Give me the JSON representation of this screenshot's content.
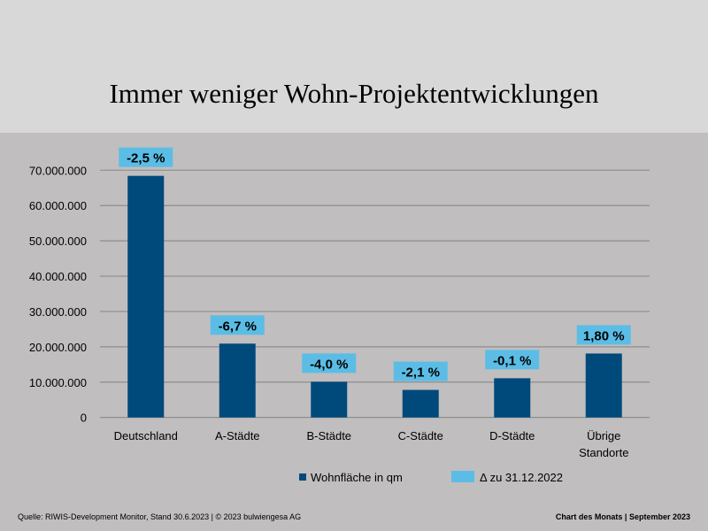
{
  "chart_data": {
    "type": "bar",
    "title": "Immer weniger Wohn-Projektentwicklungen",
    "categories": [
      "Deutschland",
      "A-Städte",
      "B-Städte",
      "C-Städte",
      "D-Städte",
      "Übrige Standorte"
    ],
    "series": [
      {
        "name": "Wohnfläche in qm",
        "color": "#00497b",
        "values": [
          68400000,
          20900000,
          10100000,
          7800000,
          11100000,
          18100000
        ]
      },
      {
        "name": "Δ zu 31.12.2022",
        "color": "#5bbde6",
        "labels": [
          "-2,5 %",
          "-6,7 %",
          "-4,0 %",
          "-2,1 %",
          "-0,1 %",
          "1,80 %"
        ]
      }
    ],
    "ylim": [
      0,
      70000000
    ],
    "yticks": [
      "0",
      "10.000.000",
      "20.000.000",
      "30.000.000",
      "40.000.000",
      "50.000.000",
      "60.000.000",
      "70.000.000"
    ],
    "grid": true,
    "legend": "bottom"
  },
  "footer": {
    "source": "Quelle: RIWIS-Development Monitor, Stand 30.6.2023  | © 2023 bulwiengesa AG",
    "right": "Chart des Monats | September 2023"
  }
}
